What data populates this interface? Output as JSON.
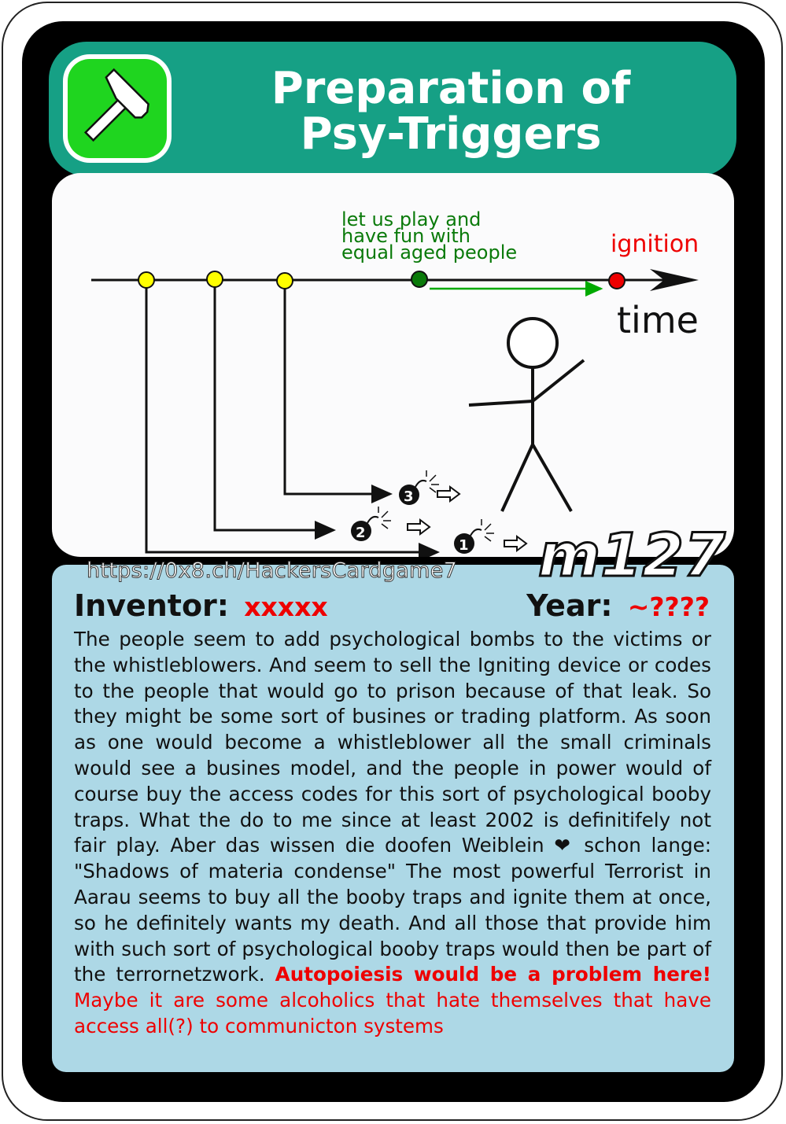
{
  "card": {
    "title_line1": "Preparation of",
    "title_line2": "Psy-Triggers",
    "icon": "hammer-icon",
    "url": "https://0x8.ch/HackersCardgame7",
    "code": "m127",
    "inventor_label": "Inventor:",
    "inventor_value": "xxxxx",
    "year_label": "Year:",
    "year_value": "~????"
  },
  "diagram": {
    "label_play": [
      "let us play and",
      "have fun with",
      "equal aged people"
    ],
    "label_ignition": "ignition",
    "label_time": "time",
    "bomb_numbers": [
      "1",
      "2",
      "3"
    ]
  },
  "description": {
    "main": "The people seem to add psychological bombs to the victims or the whistleblowers. And seem to sell the Igniting device or codes to the people that would go to prison because of that leak. So they might be some sort of busines or trading platform. As soon as one would become a whistleblower all the small criminals would see a busines model, and the people in power would of course buy the access codes for this sort of psychological booby traps. What the do to me since at least 2002 is definitifely not fair play. Aber das wissen die doofen Weiblein ❤ schon lange: \"Shadows of materia condense\" The most powerful Terrorist in Aarau seems to buy all the booby traps and ignite them at once, so he definitely wants my death. And all those that provide him with such sort of psychological booby traps would then be part of the terrornetzwork.",
    "bold_red": "Autopoiesis would be a problem here!",
    "red": "Maybe it are some alcoholics that hate themselves that have access all(?) to communicton systems"
  },
  "colors": {
    "header": "#16a085",
    "badge_green": "#1fd51f",
    "lower_panel": "#add8e6",
    "accent_red": "#e00000",
    "accent_green": "#008000"
  }
}
